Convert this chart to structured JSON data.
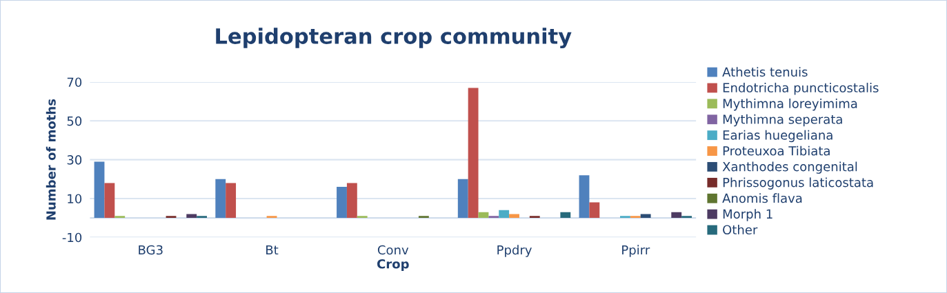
{
  "chart_data": {
    "type": "bar",
    "title": "Lepidopteran crop community",
    "xlabel": "Crop",
    "ylabel": "Number of moths",
    "categories": [
      "BG3",
      "Bt",
      "Conv",
      "Ppdry",
      "Ppirr"
    ],
    "series": [
      {
        "name": "Athetis tenuis",
        "color": "#4f81bd",
        "values": [
          29,
          20,
          16,
          20,
          22
        ]
      },
      {
        "name": "Endotricha puncticostalis",
        "color": "#c0504d",
        "values": [
          18,
          18,
          18,
          67,
          8
        ]
      },
      {
        "name": "Mythimna loreyimima",
        "color": "#9bbb59",
        "values": [
          1,
          0,
          1,
          3,
          0
        ]
      },
      {
        "name": "Mythimna seperata",
        "color": "#8064a2",
        "values": [
          0,
          0,
          0,
          1,
          0
        ]
      },
      {
        "name": "Earias huegeliana",
        "color": "#4bacc6",
        "values": [
          0,
          0,
          0,
          4,
          1
        ]
      },
      {
        "name": "Proteuxoa Tibiata",
        "color": "#f79646",
        "values": [
          0,
          1,
          0,
          2,
          1
        ]
      },
      {
        "name": "Xanthodes congenital",
        "color": "#2c4d75",
        "values": [
          0,
          0,
          0,
          0,
          2
        ]
      },
      {
        "name": "Phrissogonus laticostata",
        "color": "#772c2a",
        "values": [
          1,
          0,
          0,
          1,
          0
        ]
      },
      {
        "name": "Anomis flava",
        "color": "#5f7530",
        "values": [
          0,
          0,
          1,
          0,
          0
        ]
      },
      {
        "name": "Morph 1",
        "color": "#4d3b62",
        "values": [
          2,
          0,
          0,
          0,
          3
        ]
      },
      {
        "name": "Other",
        "color": "#276a7c",
        "values": [
          1,
          0,
          0,
          3,
          1
        ]
      }
    ],
    "ylim": [
      -10,
      70
    ],
    "yticks": [
      -10,
      10,
      30,
      50,
      70
    ],
    "grid": "y",
    "legend": "right"
  }
}
